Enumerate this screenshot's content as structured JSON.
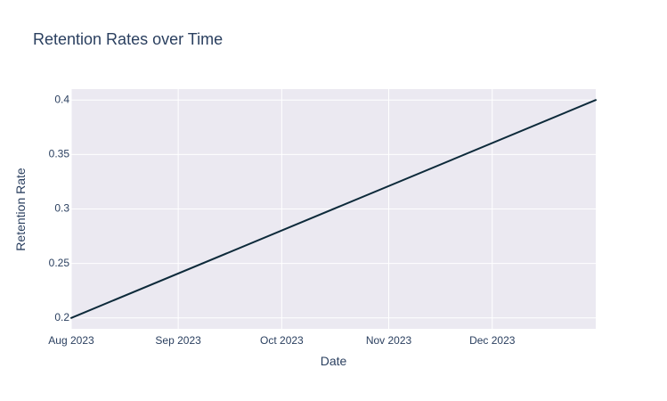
{
  "chart_data": {
    "type": "line",
    "title": "Retention Rates over Time",
    "xlabel": "Date",
    "ylabel": "Retention Rate",
    "x_axis_type": "date",
    "xlim": [
      "2023-08-01",
      "2023-12-31"
    ],
    "ylim": [
      0.19,
      0.41
    ],
    "x_ticks": [
      {
        "value": "2023-08-01",
        "label": "Aug 2023"
      },
      {
        "value": "2023-09-01",
        "label": "Sep 2023"
      },
      {
        "value": "2023-10-01",
        "label": "Oct 2023"
      },
      {
        "value": "2023-11-01",
        "label": "Nov 2023"
      },
      {
        "value": "2023-12-01",
        "label": "Dec 2023"
      }
    ],
    "y_ticks": [
      {
        "value": 0.2,
        "label": "0.2"
      },
      {
        "value": 0.25,
        "label": "0.25"
      },
      {
        "value": 0.3,
        "label": "0.3"
      },
      {
        "value": 0.35,
        "label": "0.35"
      },
      {
        "value": 0.4,
        "label": "0.4"
      }
    ],
    "series": [
      {
        "color": "#0d2a3a",
        "points": [
          {
            "x": "2023-08-01",
            "y": 0.2
          },
          {
            "x": "2023-12-31",
            "y": 0.4
          }
        ]
      }
    ],
    "grid": true,
    "legend": "none",
    "plot_bg": "#ebe9f1",
    "grid_color": "#ffffff",
    "text_color": "#2a3f5f"
  }
}
